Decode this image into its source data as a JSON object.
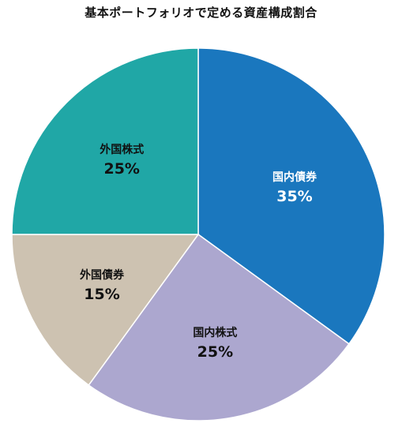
{
  "chart_data": {
    "type": "pie",
    "title": "基本ポートフォリオで定める資産構成割合",
    "slices": [
      {
        "label": "国内債券",
        "value": 35,
        "value_label": "35%",
        "color": "#1a77be",
        "text_color": "#ffffff"
      },
      {
        "label": "国内株式",
        "value": 25,
        "value_label": "25%",
        "color": "#aca7cf",
        "text_color": "#111111"
      },
      {
        "label": "外国債券",
        "value": 15,
        "value_label": "15%",
        "color": "#cdc2b1",
        "text_color": "#111111"
      },
      {
        "label": "外国株式",
        "value": 25,
        "value_label": "25%",
        "color": "#20a7a6",
        "text_color": "#111111"
      }
    ],
    "start": "12 o'clock",
    "direction": "clockwise",
    "legend": "none"
  }
}
